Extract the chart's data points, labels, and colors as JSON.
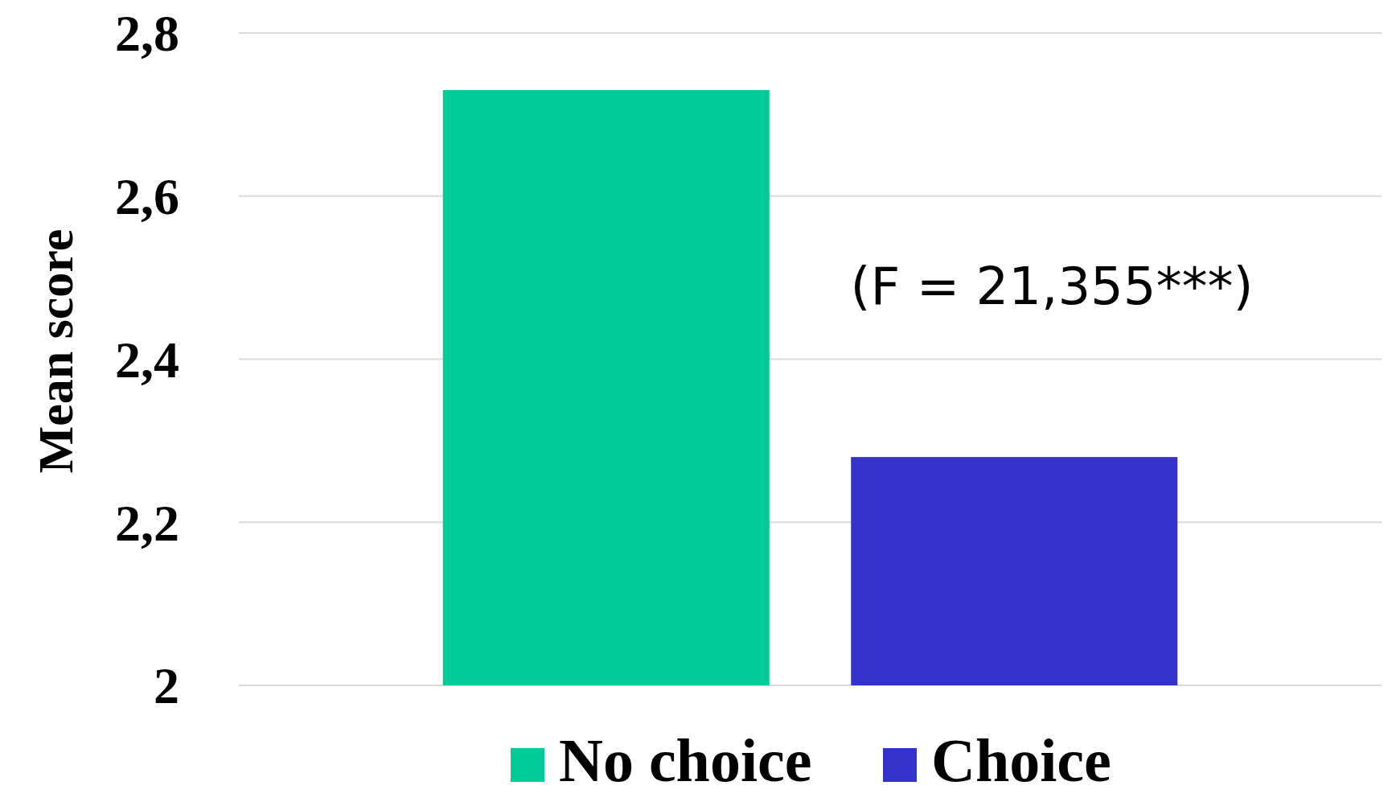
{
  "chart_data": {
    "type": "bar",
    "ylabel": "Mean score",
    "categories": [
      null
    ],
    "series": [
      {
        "name": "No choice",
        "color": "#00cc99",
        "values": [
          2.73
        ]
      },
      {
        "name": "Choice",
        "color": "#3333cc",
        "values": [
          2.28
        ]
      }
    ],
    "ylim": [
      2,
      2.8
    ],
    "yticks": [
      2,
      {
        "value": 2.2,
        "label": "2,2"
      },
      {
        "value": 2.4,
        "label": "2,4"
      },
      {
        "value": 2.6,
        "label": "2,6"
      },
      {
        "value": 2.8,
        "label": "2,8"
      }
    ],
    "grid": "y",
    "legend": "bottom",
    "annotations": [
      "(F = 21,355***)"
    ]
  }
}
